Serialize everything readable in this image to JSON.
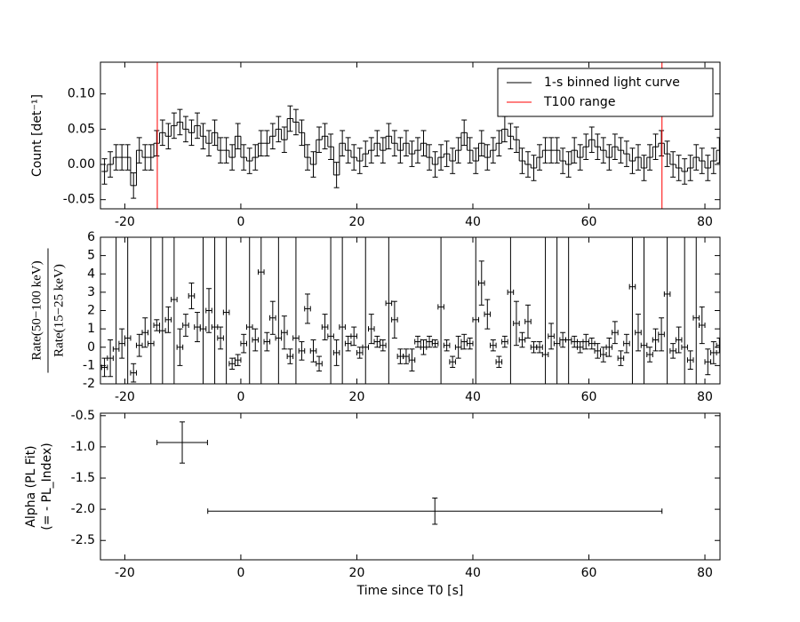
{
  "chart_data": [
    {
      "type": "step-errorbar",
      "ylabel": "Count [det⁻¹]",
      "xlim": [
        -24.2,
        82.6
      ],
      "xticks": [
        -20,
        0,
        20,
        40,
        60,
        80
      ],
      "ylim": [
        -0.063,
        0.145
      ],
      "yticks": [
        -0.05,
        {
          "value": 0,
          "label": "0.00"
        },
        0.05,
        {
          "value": 0.1,
          "label": "0.10"
        }
      ],
      "x": [
        -23.5,
        -22.5,
        -21.5,
        -20.5,
        -19.5,
        -18.5,
        -17.5,
        -16.5,
        -15.5,
        -14.5,
        -13.5,
        -12.5,
        -11.5,
        -10.5,
        -9.5,
        -8.5,
        -7.5,
        -6.5,
        -5.5,
        -4.5,
        -3.5,
        -2.5,
        -1.5,
        -0.5,
        0.5,
        1.5,
        2.5,
        3.5,
        4.5,
        5.5,
        6.5,
        7.5,
        8.5,
        9.5,
        10.5,
        11.5,
        12.5,
        13.5,
        14.5,
        15.5,
        16.5,
        17.5,
        18.5,
        19.5,
        20.5,
        21.5,
        22.5,
        23.5,
        24.5,
        25.5,
        26.5,
        27.5,
        28.5,
        29.5,
        30.5,
        31.5,
        32.5,
        33.5,
        34.5,
        35.5,
        36.5,
        37.5,
        38.5,
        39.5,
        40.5,
        41.5,
        42.5,
        43.5,
        44.5,
        45.5,
        46.5,
        47.5,
        48.5,
        49.5,
        50.5,
        51.5,
        52.5,
        53.5,
        54.5,
        55.5,
        56.5,
        57.5,
        58.5,
        59.5,
        60.5,
        61.5,
        62.5,
        63.5,
        64.5,
        65.5,
        66.5,
        67.5,
        68.5,
        69.5,
        70.5,
        71.5,
        72.5,
        73.5,
        74.5,
        75.5,
        76.5,
        77.5,
        78.5,
        79.5,
        80.5,
        81.5,
        82.5
      ],
      "series": [
        {
          "name": "1-s binned light curve",
          "color": "#000000",
          "yerr": 0.018,
          "values": [
            -0.01,
            0.0,
            0.01,
            0.01,
            0.01,
            -0.03,
            0.02,
            0.01,
            0.01,
            0.03,
            0.045,
            0.04,
            0.055,
            0.06,
            0.05,
            0.045,
            0.055,
            0.04,
            0.03,
            0.045,
            0.02,
            0.02,
            0.01,
            0.04,
            0.01,
            0.005,
            0.01,
            0.03,
            0.03,
            0.04,
            0.05,
            0.035,
            0.065,
            0.06,
            0.045,
            0.01,
            0.0,
            0.035,
            0.04,
            0.025,
            -0.015,
            0.03,
            0.02,
            0.01,
            0.005,
            0.015,
            0.02,
            0.03,
            0.02,
            0.04,
            0.03,
            0.02,
            0.03,
            0.015,
            0.02,
            0.03,
            0.01,
            0.0,
            0.01,
            0.015,
            0.005,
            0.02,
            0.045,
            0.02,
            0.005,
            0.03,
            0.01,
            0.02,
            0.03,
            0.05,
            0.04,
            0.035,
            0.005,
            0.0,
            -0.005,
            0.01,
            0.02,
            0.02,
            0.02,
            0.005,
            0.0,
            0.02,
            0.01,
            0.025,
            0.035,
            0.025,
            0.02,
            0.01,
            0.025,
            0.02,
            0.015,
            0.005,
            0.01,
            -0.005,
            0.01,
            0.025,
            0.03,
            0.015,
            0.0,
            -0.005,
            -0.01,
            -0.005,
            0.01,
            0.005,
            -0.005,
            0.005,
            0.02
          ]
        }
      ],
      "vlines": {
        "name": "T100 range",
        "color": "#ff0000",
        "x": [
          -14.4,
          72.6
        ]
      },
      "legend": "upper right"
    },
    {
      "type": "errorbar",
      "ylabel": {
        "numerator": "Rate(50−100 keV)",
        "denominator": "Rate(15−25 keV)"
      },
      "xlim": [
        -24.2,
        82.6
      ],
      "xticks": [
        -20,
        0,
        20,
        40,
        60,
        80
      ],
      "ylim": [
        -2,
        6
      ],
      "yticks": [
        -2,
        -1,
        0,
        1,
        2,
        3,
        4,
        5,
        6
      ],
      "x": [
        -23.5,
        -22.5,
        -21.5,
        -20.5,
        -19.5,
        -18.5,
        -17.5,
        -16.5,
        -15.5,
        -14.5,
        -13.5,
        -12.5,
        -11.5,
        -10.5,
        -9.5,
        -8.5,
        -7.5,
        -6.5,
        -5.5,
        -4.5,
        -3.5,
        -2.5,
        -1.5,
        -0.5,
        0.5,
        1.5,
        2.5,
        3.5,
        4.5,
        5.5,
        6.5,
        7.5,
        8.5,
        9.5,
        10.5,
        11.5,
        12.5,
        13.5,
        14.5,
        15.5,
        16.5,
        17.5,
        18.5,
        19.5,
        20.5,
        21.5,
        22.5,
        23.5,
        24.5,
        25.5,
        26.5,
        27.5,
        28.5,
        29.5,
        30.5,
        31.5,
        32.5,
        33.5,
        34.5,
        35.5,
        36.5,
        37.5,
        38.5,
        39.5,
        40.5,
        41.5,
        42.5,
        43.5,
        44.5,
        45.5,
        46.5,
        47.5,
        48.5,
        49.5,
        50.5,
        51.5,
        52.5,
        53.5,
        54.5,
        55.5,
        56.5,
        57.5,
        58.5,
        59.5,
        60.5,
        61.5,
        62.5,
        63.5,
        64.5,
        65.5,
        66.5,
        67.5,
        68.5,
        69.5,
        70.5,
        71.5,
        72.5,
        73.5,
        74.5,
        75.5,
        76.5,
        77.5,
        78.5,
        79.5,
        80.5,
        81.5,
        82.5
      ],
      "color": "#000000",
      "values": [
        -1.1,
        -0.6,
        -0.1,
        0.2,
        0.5,
        -1.4,
        0.1,
        0.8,
        0.2,
        1.2,
        0.9,
        1.5,
        2.6,
        0.0,
        1.2,
        2.8,
        1.1,
        1.0,
        2.0,
        1.1,
        0.5,
        1.9,
        -0.9,
        -0.7,
        0.2,
        1.1,
        0.4,
        4.1,
        0.3,
        1.6,
        0.5,
        0.8,
        -0.5,
        0.5,
        -0.2,
        2.1,
        -0.2,
        -0.9,
        1.1,
        0.6,
        -0.3,
        1.1,
        0.2,
        0.6,
        -0.3,
        0.0,
        1.0,
        0.3,
        0.1,
        2.4,
        1.5,
        -0.5,
        -0.5,
        -0.7,
        0.3,
        0.0,
        0.3,
        0.2,
        2.2,
        0.1,
        -0.8,
        0.0,
        0.3,
        0.2,
        1.5,
        3.5,
        1.8,
        0.1,
        -0.8,
        0.3,
        3.0,
        1.3,
        0.4,
        1.4,
        0.0,
        0.0,
        -0.4,
        0.6,
        0.2,
        0.4,
        0.4,
        0.3,
        0.0,
        0.3,
        0.2,
        -0.2,
        -0.4,
        0.0,
        0.8,
        -0.6,
        0.2,
        3.3,
        0.8,
        0.1,
        -0.4,
        0.4,
        0.7,
        2.9,
        -0.2,
        0.4,
        0.0,
        -0.7,
        1.6,
        1.2,
        -0.8,
        -0.3,
        0.1
      ],
      "yerr": [
        0.5,
        1.0,
        10,
        0.8,
        10,
        0.5,
        0.6,
        0.8,
        10,
        0.3,
        10,
        0.7,
        10,
        1.0,
        0.6,
        0.7,
        0.8,
        10,
        1.2,
        10,
        0.6,
        10,
        0.3,
        0.3,
        0.5,
        10,
        0.6,
        10,
        0.5,
        0.9,
        10,
        0.9,
        0.4,
        10,
        0.5,
        0.8,
        0.6,
        0.4,
        0.7,
        10,
        0.7,
        10,
        0.4,
        0.5,
        0.3,
        10,
        0.8,
        0.3,
        0.3,
        10,
        1.0,
        0.4,
        0.4,
        0.6,
        0.3,
        0.4,
        0.3,
        0.2,
        10,
        0.3,
        0.3,
        0.6,
        0.4,
        0.3,
        10,
        1.2,
        0.8,
        0.3,
        0.3,
        0.3,
        10,
        1.2,
        0.4,
        0.9,
        0.3,
        0.3,
        10,
        0.7,
        10,
        0.4,
        10,
        0.3,
        0.3,
        0.4,
        0.3,
        0.4,
        0.4,
        0.5,
        0.6,
        0.4,
        0.5,
        10,
        1.0,
        10,
        0.4,
        0.6,
        0.9,
        10,
        0.4,
        0.7,
        10,
        0.5,
        10,
        1.0,
        0.7,
        0.6,
        0.4
      ],
      "xerr": 0.5
    },
    {
      "type": "errorbar",
      "ylabel": [
        "Alpha (PL Fit)",
        "(= - PL_Index)"
      ],
      "xlabel": "Time since T0 [s]",
      "xlim": [
        -24.2,
        82.6
      ],
      "xticks": [
        -20,
        0,
        20,
        40,
        60,
        80
      ],
      "ylim": [
        -2.81,
        -0.46
      ],
      "yticks": [
        -0.5,
        {
          "value": -1,
          "label": "-1.0"
        },
        -1.5,
        {
          "value": -2,
          "label": "-2.0"
        },
        -2.5
      ],
      "color": "#000000",
      "x": [
        -10.1,
        33.45
      ],
      "xerr": [
        4.35,
        39.15
      ],
      "values": [
        -0.93,
        -2.03
      ],
      "yerr": [
        0.33,
        0.21
      ]
    }
  ]
}
